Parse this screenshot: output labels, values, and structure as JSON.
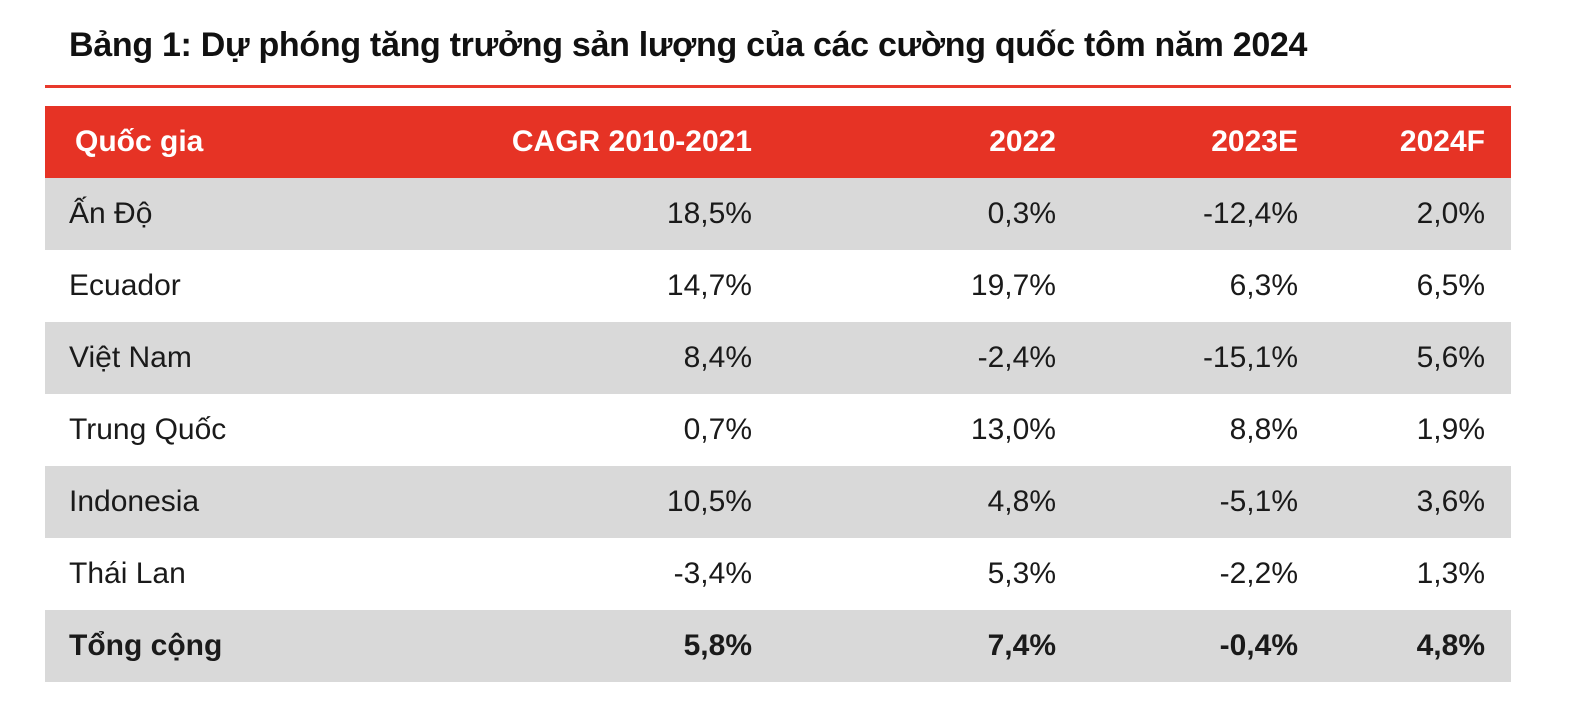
{
  "title": "Bảng 1: Dự phóng tăng trưởng sản lượng của các cường quốc tôm năm 2024",
  "colors": {
    "header_bg": "#e63325",
    "rule": "#e8392c",
    "shaded_row": "#d9d9d9"
  },
  "table": {
    "headers": [
      "Quốc gia",
      "CAGR 2010-2021",
      "2022",
      "2023E",
      "2024F"
    ],
    "rows": [
      [
        "Ấn Độ",
        "18,5%",
        "0,3%",
        "-12,4%",
        "2,0%"
      ],
      [
        "Ecuador",
        "14,7%",
        "19,7%",
        "6,3%",
        "6,5%"
      ],
      [
        "Việt Nam",
        "8,4%",
        "-2,4%",
        "-15,1%",
        "5,6%"
      ],
      [
        "Trung Quốc",
        "0,7%",
        "13,0%",
        "8,8%",
        "1,9%"
      ],
      [
        "Indonesia",
        "10,5%",
        "4,8%",
        "-5,1%",
        "3,6%"
      ],
      [
        "Thái Lan",
        "-3,4%",
        "5,3%",
        "-2,2%",
        "1,3%"
      ]
    ],
    "total": [
      "Tổng cộng",
      "5,8%",
      "7,4%",
      "-0,4%",
      "4,8%"
    ]
  }
}
